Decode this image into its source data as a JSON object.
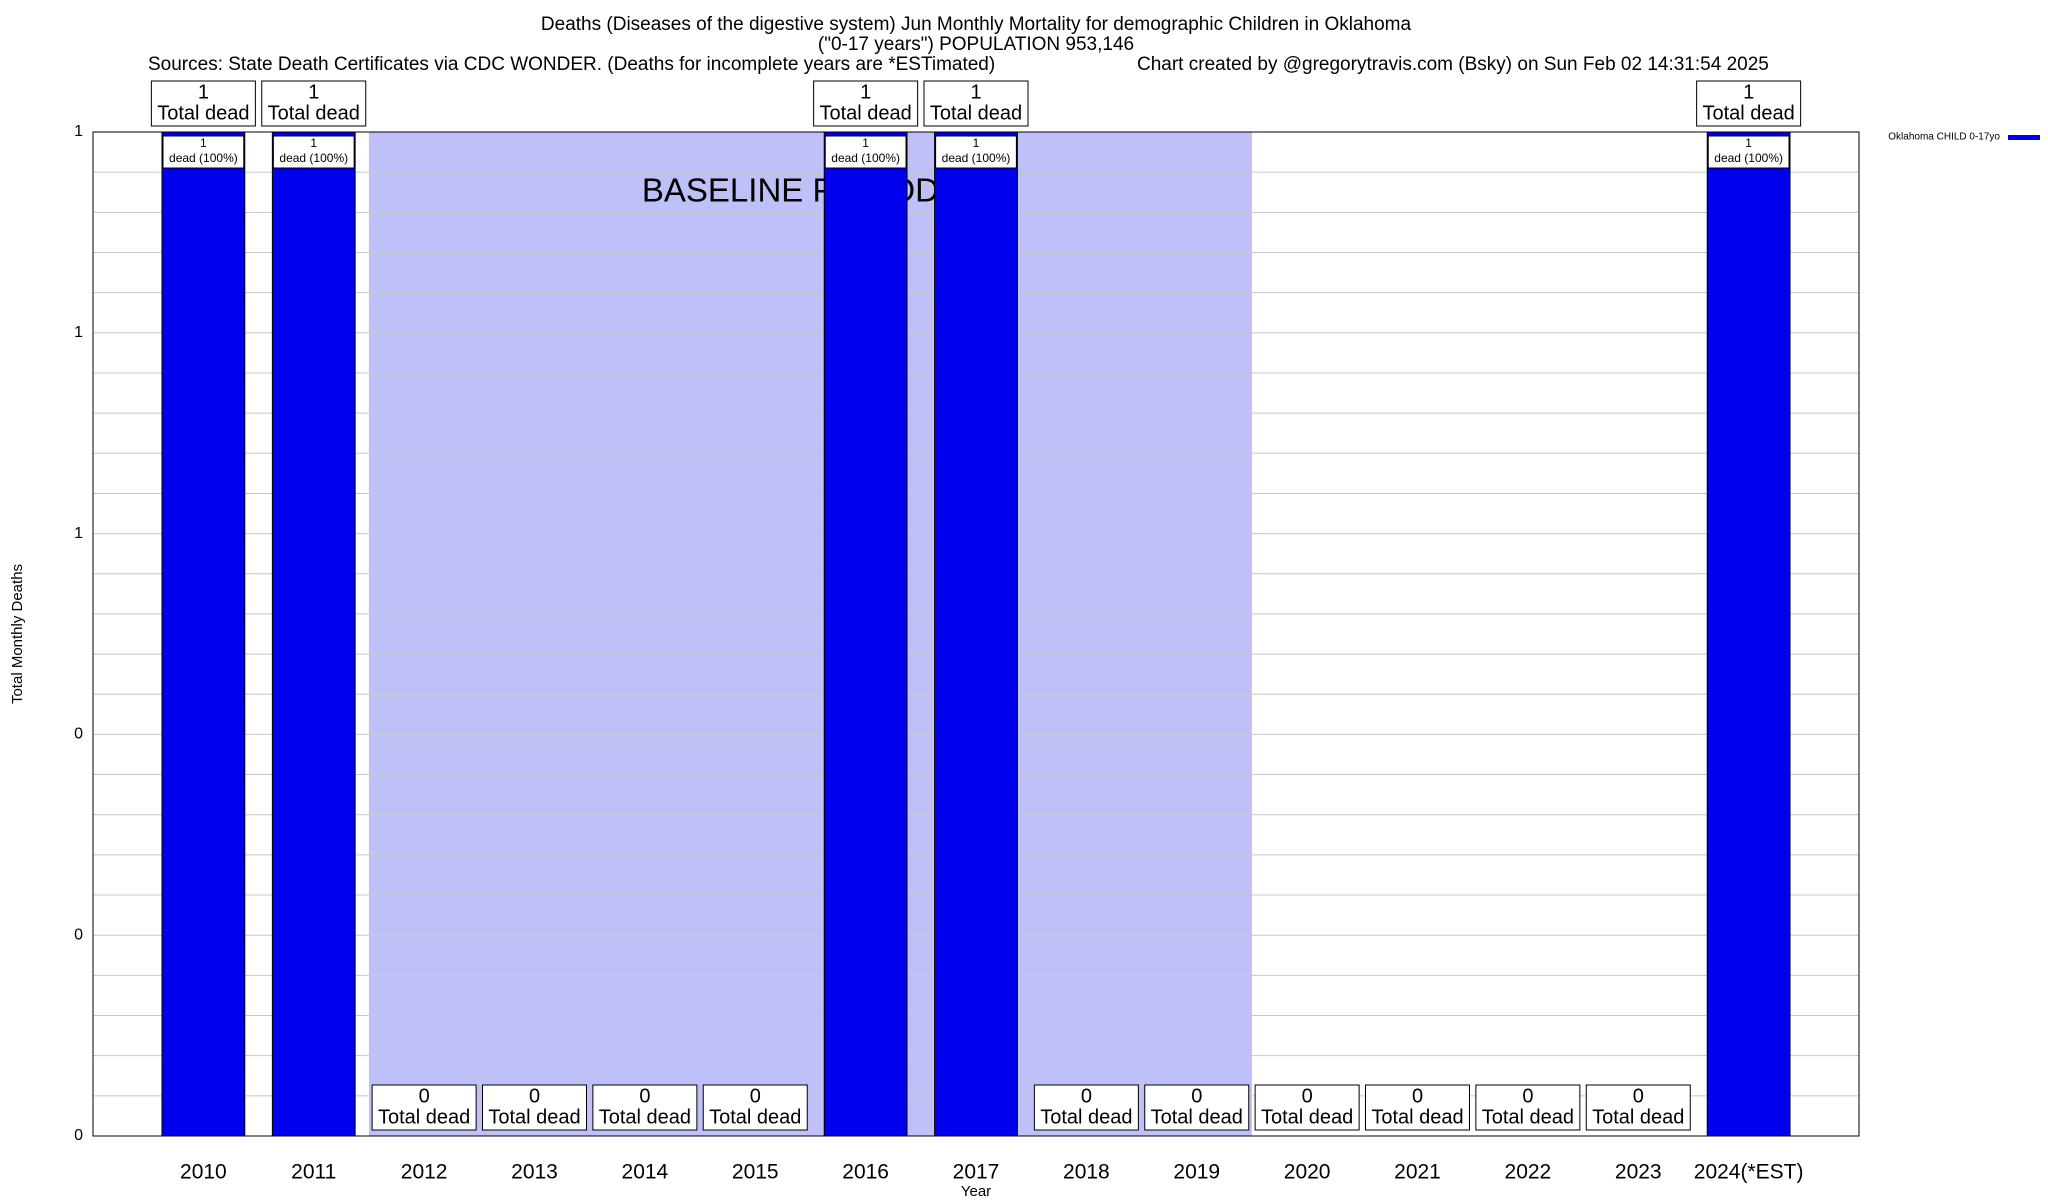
{
  "chart_data": {
    "type": "bar",
    "title": "Deaths (Diseases of the digestive system) Jun Monthly Mortality for demographic Children in Oklahoma",
    "subtitle": "(\"0-17 years\") POPULATION 953,146",
    "sources": "Sources: State Death Certificates via CDC WONDER. (Deaths for incomplete years are *ESTimated)",
    "credit": "Chart created by @gregorytravis.com (Bsky) on Sun Feb 02 14:31:54 2025",
    "xlabel": "Year",
    "ylabel": "Total Monthly Deaths",
    "categories": [
      "2010",
      "2011",
      "2012",
      "2013",
      "2014",
      "2015",
      "2016",
      "2017",
      "2018",
      "2019",
      "2020",
      "2021",
      "2022",
      "2023",
      "2024(*EST)"
    ],
    "series": [
      {
        "name": "Oklahoma CHILD 0-17yo",
        "color": "#0000ee",
        "values": [
          1,
          1,
          0,
          0,
          0,
          0,
          1,
          1,
          0,
          0,
          0,
          0,
          0,
          0,
          1
        ],
        "inner_labels": [
          "dead (100%)",
          "dead (100%)",
          null,
          null,
          null,
          null,
          "dead (100%)",
          "dead (100%)",
          null,
          null,
          null,
          null,
          null,
          null,
          "dead (100%)"
        ]
      }
    ],
    "total_label": "Total dead",
    "baseline": {
      "label": "BASELINE PERIOD",
      "start": "2012",
      "end": "2019",
      "color": "#c0c0f8"
    },
    "ylim": [
      0,
      1
    ],
    "yticks": [
      0,
      {
        "value": 0.2,
        "label": "0"
      },
      {
        "value": 0.4,
        "label": "0"
      },
      {
        "value": 0.6,
        "label": "1"
      },
      {
        "value": 0.8,
        "label": "1"
      },
      1
    ],
    "grid": true,
    "legend": "top-right"
  }
}
